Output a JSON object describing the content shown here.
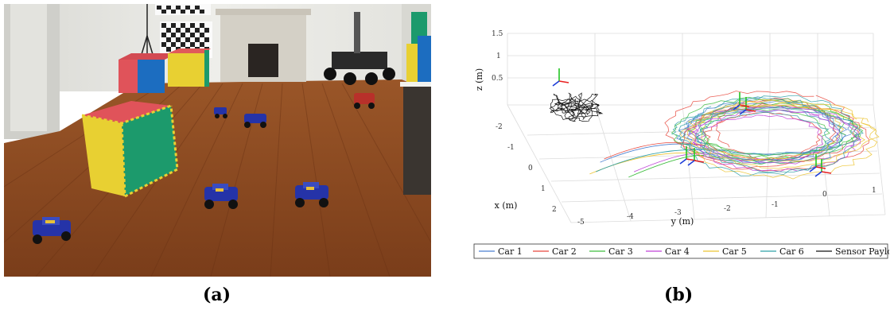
{
  "figure": {
    "caption_a": "(a)",
    "caption_b": "(b)"
  },
  "plot": {
    "z_ticks": [
      "1.5",
      "1",
      "0.5"
    ],
    "x_ticks": [
      "-2",
      "-1",
      "0",
      "1",
      "2"
    ],
    "y_ticks": [
      "-5",
      "-4",
      "-3",
      "-2",
      "-1",
      "0",
      "1"
    ],
    "zlabel": "z (m)",
    "xlabel": "x (m)",
    "ylabel": "y (m)"
  },
  "legend": {
    "items": [
      {
        "label": "Car 1",
        "color": "#4a7fd0"
      },
      {
        "label": "Car 2",
        "color": "#e8463c"
      },
      {
        "label": "Car 3",
        "color": "#3dbd3d"
      },
      {
        "label": "Car 4",
        "color": "#c040d8"
      },
      {
        "label": "Car 5",
        "color": "#ecc431"
      },
      {
        "label": "Car 6",
        "color": "#2fa0a8"
      },
      {
        "label": "Sensor Payload",
        "color": "#111111"
      }
    ]
  },
  "colors": {
    "floor": "#8a4a22",
    "wall": "#e9e9e4",
    "foam_green": "#1c9a6c",
    "foam_red": "#e0535a",
    "foam_yellow": "#e8d032",
    "car_blue": "#2533a8"
  }
}
